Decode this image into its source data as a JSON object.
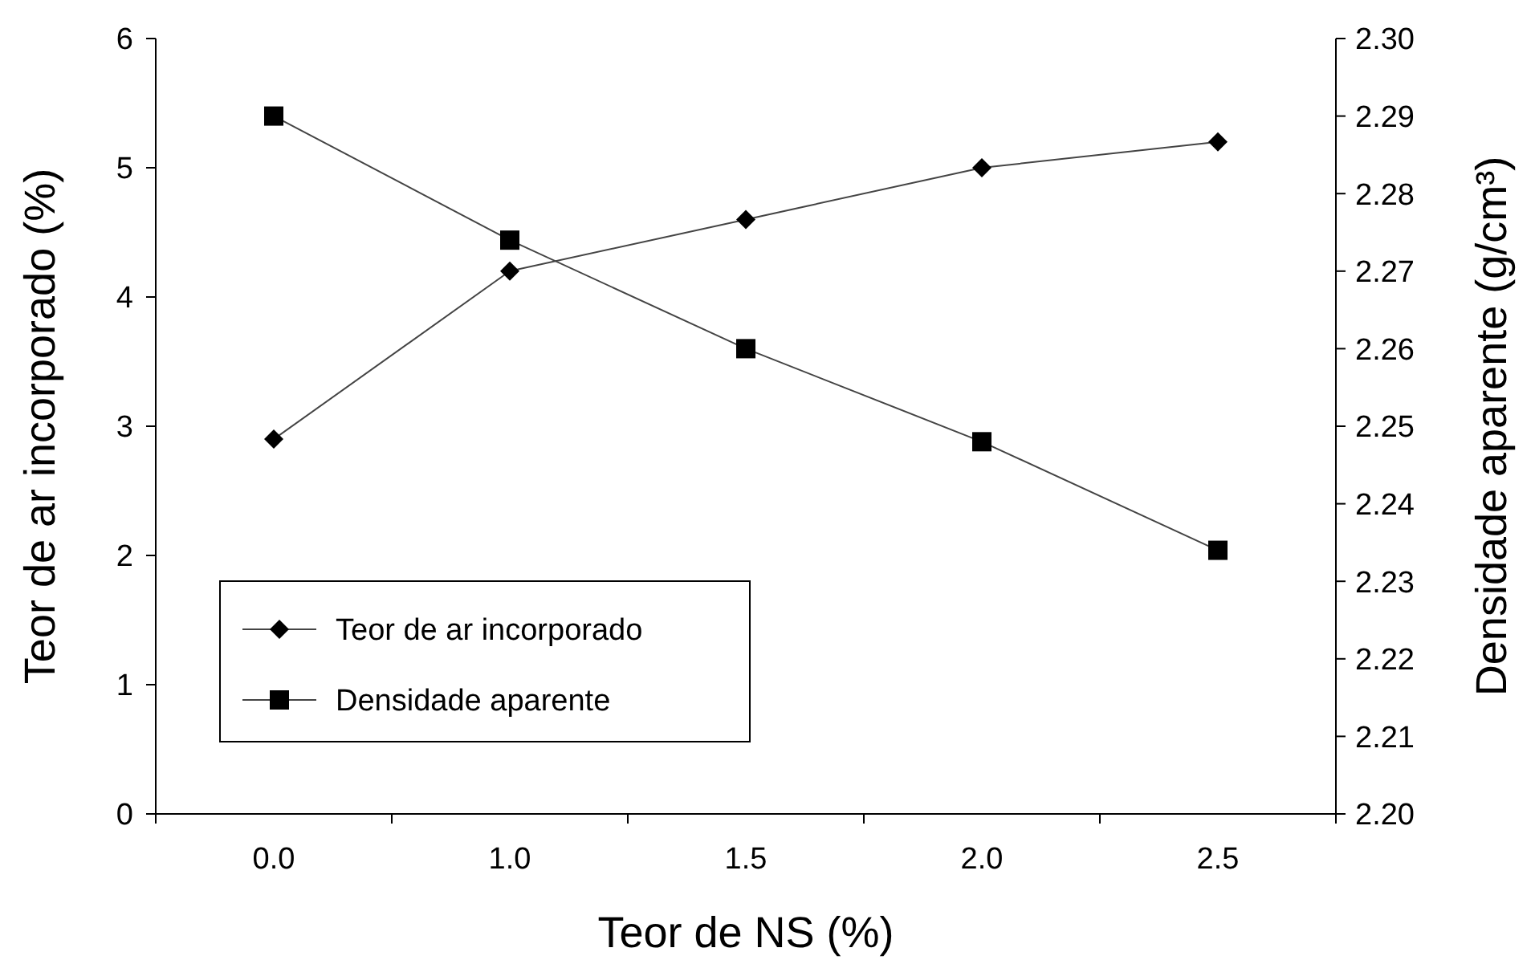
{
  "chart_data": {
    "type": "line",
    "xlabel": "Teor de NS (%)",
    "ylabel": "Teor de ar incorporado (%)",
    "y2label": "Densidade aparente (g/cm³)",
    "categories": [
      "0.0",
      "1.0",
      "1.5",
      "2.0",
      "2.5"
    ],
    "series": [
      {
        "name": "Teor de ar incorporado",
        "color": "#000000",
        "marker": "diamond",
        "values": [
          2.9,
          4.2,
          4.6,
          5.0,
          5.2
        ]
      },
      {
        "name": "Densidade aparente",
        "color": "#000000",
        "marker": "square",
        "axis": "y2",
        "values": [
          2.29,
          2.274,
          2.26,
          2.248,
          2.234
        ]
      }
    ],
    "ylim": [
      0,
      6
    ],
    "yticks": [
      0,
      1,
      2,
      3,
      4,
      5,
      6
    ],
    "y2lim": [
      2.2,
      2.3
    ],
    "y2ticks": [
      {
        "value": 2.2,
        "label": "2.20"
      },
      {
        "value": 2.21,
        "label": "2.21"
      },
      {
        "value": 2.22,
        "label": "2.22"
      },
      {
        "value": 2.23,
        "label": "2.23"
      },
      {
        "value": 2.24,
        "label": "2.24"
      },
      {
        "value": 2.25,
        "label": "2.25"
      },
      {
        "value": 2.26,
        "label": "2.26"
      },
      {
        "value": 2.27,
        "label": "2.27"
      },
      {
        "value": 2.28,
        "label": "2.28"
      },
      {
        "value": 2.29,
        "label": "2.29"
      },
      {
        "value": 2.3,
        "label": "2.30"
      }
    ],
    "legend": "bottom left",
    "grid": false,
    "line_style": "solid"
  }
}
